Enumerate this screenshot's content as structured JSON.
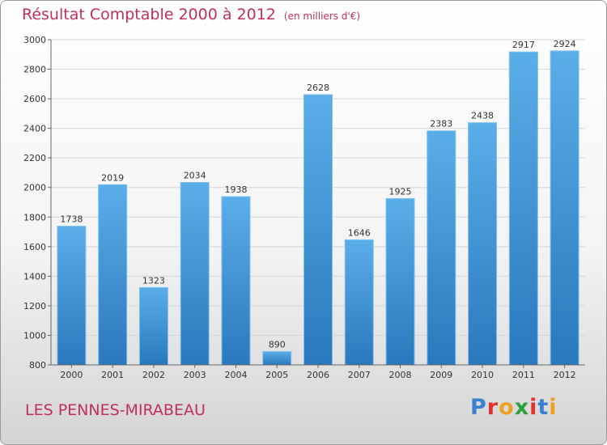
{
  "title": "Résultat Comptable 2000 à 2012",
  "unit": "(en milliers d'€)",
  "commune": "LES PENNES-MIRABEAU",
  "logo": {
    "text": "Proxiti",
    "colors": [
      "#3a7fd0",
      "#e0342f",
      "#f0a020",
      "#2f9e3f",
      "#e0342f",
      "#3a7fd0",
      "#f0a020"
    ]
  },
  "colors": {
    "bar_light": "#5aaee8",
    "bar_dark": "#2a78bd",
    "title": "#c0305a"
  },
  "chart_data": {
    "type": "bar",
    "categories": [
      "2000",
      "2001",
      "2002",
      "2003",
      "2004",
      "2005",
      "2006",
      "2007",
      "2008",
      "2009",
      "2010",
      "2011",
      "2012"
    ],
    "values": [
      1738,
      2019,
      1323,
      2034,
      1938,
      890,
      2628,
      1646,
      1925,
      2383,
      2438,
      2917,
      2924
    ],
    "ylim": [
      800,
      3000
    ],
    "yticks": [
      800,
      1000,
      1200,
      1400,
      1600,
      1800,
      2000,
      2200,
      2400,
      2600,
      2800,
      3000
    ],
    "grid": true,
    "legend": "none"
  }
}
